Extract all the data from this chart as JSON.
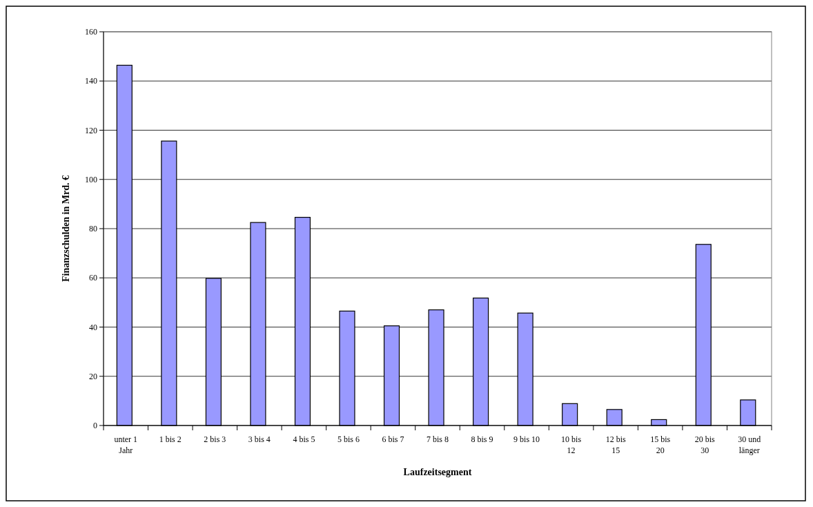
{
  "chart_data": {
    "type": "bar",
    "xlabel": "Laufzeitsegment",
    "ylabel": "Finanzschulden in Mrd. €",
    "categories": [
      "unter 1 Jahr",
      "1 bis 2",
      "2 bis 3",
      "3 bis 4",
      "4 bis 5",
      "5 bis 6",
      "6 bis 7",
      "7 bis 8",
      "8 bis 9",
      "9 bis 10",
      "10 bis 12",
      "12 bis 15",
      "15 bis 20",
      "20 bis 30",
      "30 und länger"
    ],
    "values": [
      146.4,
      115.6,
      59.8,
      82.5,
      84.6,
      46.5,
      40.5,
      47.0,
      51.8,
      45.7,
      8.9,
      6.5,
      2.4,
      73.6,
      10.4
    ],
    "color": "#9999ff",
    "ylim": [
      0,
      160
    ],
    "yticks": [
      0,
      20,
      40,
      60,
      80,
      100,
      120,
      140,
      160
    ],
    "grid": "y"
  }
}
